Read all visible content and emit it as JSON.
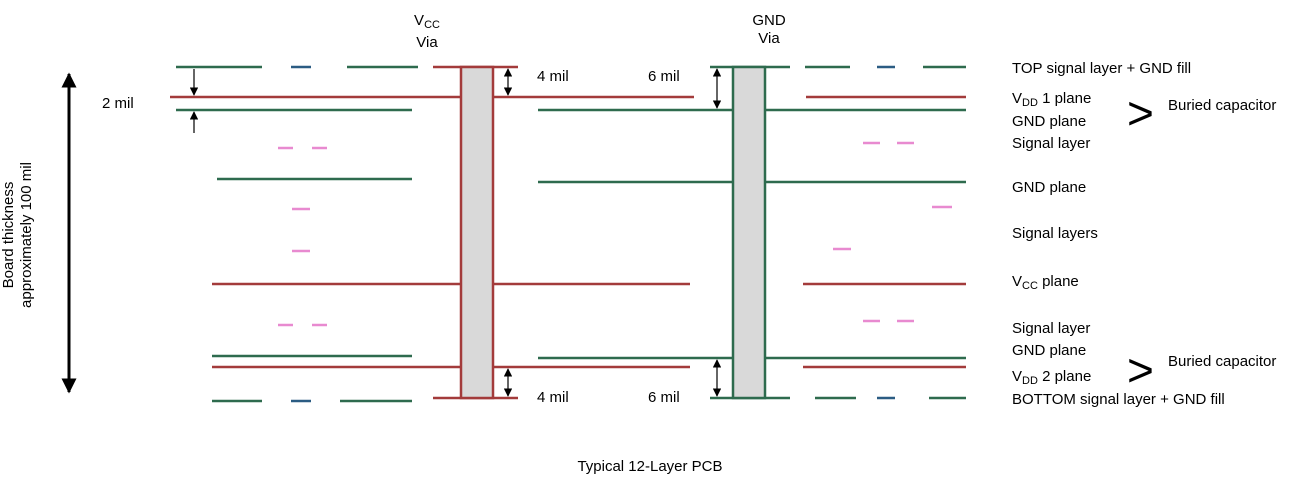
{
  "colors": {
    "signal": "#2e6b4e",
    "power": "#a33b3b",
    "dash_pink": "#e88ad0",
    "dash_blue": "#2b5c83",
    "via_fill": "#d9d9d9"
  },
  "vias": {
    "vcc": {
      "name_main": "V",
      "name_sub": "CC",
      "word": "Via"
    },
    "gnd": {
      "name": "GND",
      "word": "Via"
    }
  },
  "dimensions": {
    "top_left": "2 mil",
    "vcc_top": "4 mil",
    "gnd_top": "6 mil",
    "vcc_bottom": "4 mil",
    "gnd_bottom": "6 mil"
  },
  "board_thickness": {
    "line1": "Board thickness",
    "line2": "approximately 100 mil"
  },
  "layers": {
    "top": "TOP signal layer + GND fill",
    "vdd1_main": "V",
    "vdd1_sub": "DD",
    "vdd1_rest": " 1 plane",
    "gnd_plane_1": "GND plane",
    "signal_1": "Signal layer",
    "gnd_plane_2": "GND plane",
    "signal_layers": "Signal layers",
    "vcc_main": "V",
    "vcc_sub": "CC",
    "vcc_rest": " plane",
    "signal_2": "Signal layer",
    "gnd_plane_3": "GND plane",
    "vdd2_main": "V",
    "vdd2_sub": "DD",
    "vdd2_rest": " 2 plane",
    "bottom": "BOTTOM signal layer + GND fill"
  },
  "buried": {
    "symbol": ">",
    "label_top": "Buried capacitor",
    "label_bottom": "Buried capacitor"
  },
  "caption": "Typical 12-Layer PCB"
}
